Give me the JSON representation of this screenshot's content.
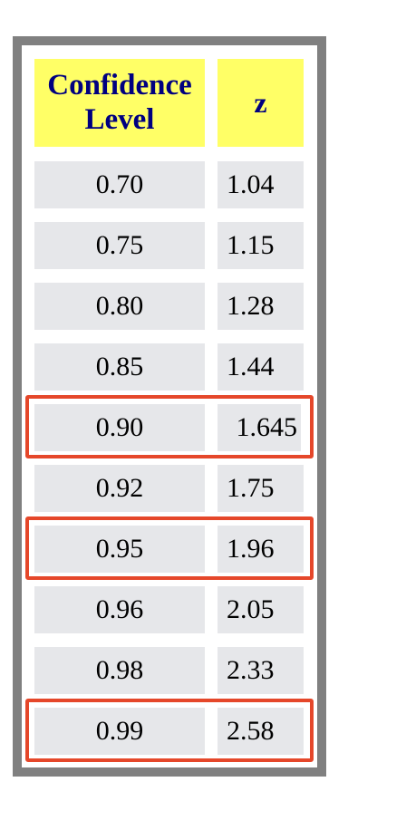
{
  "table": {
    "header": {
      "confidence_level_line1": "Confidence",
      "confidence_level_line2": "Level",
      "z": "z"
    },
    "rows": [
      {
        "level": "0.70",
        "z": "1.04",
        "highlighted": false
      },
      {
        "level": "0.75",
        "z": "1.15",
        "highlighted": false
      },
      {
        "level": "0.80",
        "z": "1.28",
        "highlighted": false
      },
      {
        "level": "0.85",
        "z": "1.44",
        "highlighted": false
      },
      {
        "level": "0.90",
        "z": "1.645",
        "highlighted": true
      },
      {
        "level": "0.92",
        "z": "1.75",
        "highlighted": false
      },
      {
        "level": "0.95",
        "z": "1.96",
        "highlighted": true
      },
      {
        "level": "0.96",
        "z": "2.05",
        "highlighted": false
      },
      {
        "level": "0.98",
        "z": "2.33",
        "highlighted": false
      },
      {
        "level": "0.99",
        "z": "2.58",
        "highlighted": true
      }
    ]
  },
  "colors": {
    "header_background": "#ffff66",
    "header_text": "#000080",
    "cell_background": "#e6e7ea",
    "frame_border": "#808080",
    "highlight_border": "#e5472a"
  }
}
